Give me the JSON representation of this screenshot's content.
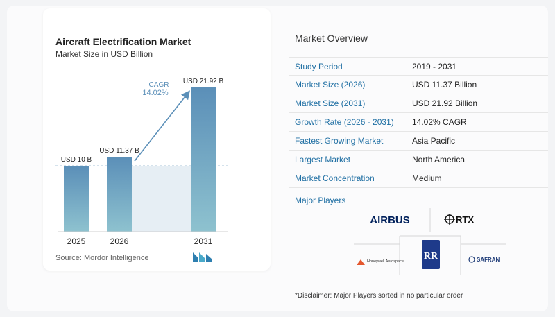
{
  "chart_data": {
    "type": "bar",
    "title": "Aircraft Electrification Market",
    "subtitle": "Market Size in USD Billion",
    "categories": [
      "2025",
      "2026",
      "2031"
    ],
    "values": [
      10,
      11.37,
      21.92
    ],
    "data_labels": [
      "USD 10 B",
      "USD 11.37 B",
      "USD 21.92 B"
    ],
    "cagr_label": "CAGR",
    "cagr_value": "14.02%",
    "ylim": [
      0,
      22
    ],
    "colors": {
      "bar_top": "#5b8fb8",
      "bar_bottom": "#8ec2cf",
      "baseline_band": "#dbe7f0",
      "arrow": "#5b8fb8"
    }
  },
  "source": "Source:  Mordor Intelligence",
  "overview": {
    "title": "Market Overview",
    "rows": [
      {
        "label": "Study Period",
        "value": "2019 - 2031"
      },
      {
        "label": "Market Size (2026)",
        "value": "USD 11.37 Billion"
      },
      {
        "label": "Market Size (2031)",
        "value": "USD 21.92 Billion"
      },
      {
        "label": "Growth Rate (2026 - 2031)",
        "value": "14.02% CAGR"
      },
      {
        "label": "Fastest Growing Market",
        "value": "Asia Pacific"
      },
      {
        "label": "Largest Market",
        "value": "North America"
      },
      {
        "label": "Market Concentration",
        "value": "Medium"
      }
    ]
  },
  "major_players": {
    "title": "Major Players",
    "logos": [
      "AIRBUS",
      "RTX",
      "Honeywell Aerospace",
      "ROLLS ROYCE",
      "SAFRAN"
    ]
  },
  "disclaimer": "*Disclaimer: Major Players sorted in no particular order"
}
